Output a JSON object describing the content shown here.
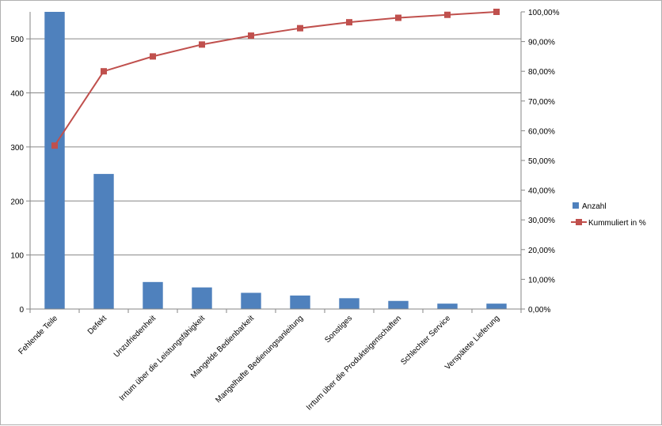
{
  "chart_data": {
    "type": "bar",
    "categories": [
      "Fehlende Teile",
      "Defekt",
      "Unzufriedenheit",
      "Irrtum über die Leistungsfähigkeit",
      "Mangelde Bedienbarkeit",
      "Mangelhafte Bedienungsanleitung",
      "Sonstiges",
      "Irrtum über die Produkteigenschaften",
      "Schlechter Service",
      "Verspätete Lieferung"
    ],
    "series": [
      {
        "name": "Anzahl",
        "type": "bar",
        "axis": "left",
        "color": "#4f81bd",
        "values": [
          550,
          250,
          50,
          40,
          30,
          25,
          20,
          15,
          10,
          10
        ]
      },
      {
        "name": "Kummuliert in %",
        "type": "line",
        "axis": "right",
        "color": "#c0504d",
        "values": [
          55,
          80,
          85,
          89,
          92,
          94.5,
          96.5,
          98,
          99,
          100
        ]
      }
    ],
    "y_left": {
      "ylim": [
        0,
        550
      ],
      "ticks": [
        "0",
        "100",
        "200",
        "300",
        "400",
        "500"
      ],
      "tick_values": [
        0,
        100,
        200,
        300,
        400,
        500
      ]
    },
    "y_right": {
      "ylim": [
        0,
        100
      ],
      "ticks": [
        "0,00%",
        "10,00%",
        "20,00%",
        "30,00%",
        "40,00%",
        "50,00%",
        "60,00%",
        "70,00%",
        "80,00%",
        "90,00%",
        "100,00%"
      ],
      "tick_values": [
        0,
        10,
        20,
        30,
        40,
        50,
        60,
        70,
        80,
        90,
        100
      ]
    },
    "grid": true,
    "legend_position": "right",
    "title": "",
    "xlabel": "",
    "ylabel": ""
  }
}
